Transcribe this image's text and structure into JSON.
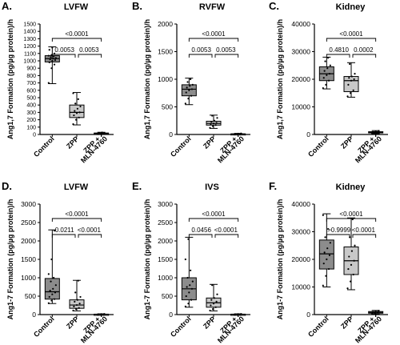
{
  "figure": {
    "ylabel_1_7": "Ang1,7 Formation (pg/µg protein)/h",
    "ylabel_1_7b": "Ang1-7 Formation (pg/µg protein)/h"
  },
  "chart_data": [
    {
      "type": "box",
      "panel_letter": "A.",
      "title": "LVFW",
      "ylabel": "Ang1,7 Formation (pg/µg protein)/h",
      "categories": [
        "Control",
        "ZPP",
        "ZPP +\nMLN-4760"
      ],
      "category_labels": [
        "Control",
        "ZPP",
        "ZPP +",
        "MLN-4760"
      ],
      "ylim": [
        0,
        1500
      ],
      "yticks": [
        "0",
        "100",
        "200",
        "300",
        "400",
        "500",
        "600",
        "700",
        "800",
        "900",
        "1000",
        "1100",
        "1200",
        "1300",
        "1400",
        "1500"
      ],
      "ytick_values": [
        0,
        100,
        200,
        300,
        400,
        500,
        600,
        700,
        800,
        900,
        1000,
        1100,
        1200,
        1300,
        1400,
        1500
      ],
      "boxes": [
        {
          "min": 690,
          "q1": 985,
          "median": 1030,
          "q3": 1070,
          "max": 1190,
          "fill": "#8c8c8c",
          "points": [
            700,
            900,
            950,
            980,
            1000,
            1010,
            1020,
            1030,
            1040,
            1050,
            1060,
            1070,
            1080,
            1100,
            1150,
            1180
          ]
        },
        {
          "min": 130,
          "q1": 230,
          "median": 300,
          "q3": 400,
          "max": 570,
          "fill": "#c8c8c8",
          "points": [
            140,
            200,
            230,
            260,
            290,
            300,
            320,
            350,
            380,
            420,
            480,
            560
          ]
        },
        {
          "min": 5,
          "q1": 10,
          "median": 14,
          "q3": 20,
          "max": 30,
          "fill": "#ffffff",
          "points": [
            5,
            8,
            10,
            12,
            15,
            18,
            22,
            28
          ]
        }
      ],
      "comparisons": [
        {
          "from": 0,
          "to": 2,
          "label": "<0.0001",
          "level": 2
        },
        {
          "from": 0,
          "to": 1,
          "label": "0.0053",
          "level": 1
        },
        {
          "from": 1,
          "to": 2,
          "label": "0.0053",
          "level": 1
        }
      ]
    },
    {
      "type": "box",
      "panel_letter": "B.",
      "title": "RVFW",
      "ylabel": "Ang1,7 Formation (pg/µg protein)/h",
      "categories": [
        "Control",
        "ZPP",
        "ZPP +\nMLN-4760"
      ],
      "category_labels": [
        "Control",
        "ZPP",
        "ZPP +",
        "MLN-4760"
      ],
      "ylim": [
        0,
        2000
      ],
      "yticks": [
        "0",
        "500",
        "1000",
        "1500",
        "2000"
      ],
      "ytick_values": [
        0,
        500,
        1000,
        1500,
        2000
      ],
      "boxes": [
        {
          "min": 540,
          "q1": 700,
          "median": 820,
          "q3": 900,
          "max": 1020,
          "fill": "#8c8c8c",
          "points": [
            560,
            650,
            700,
            760,
            800,
            820,
            850,
            880,
            900,
            950,
            1000
          ]
        },
        {
          "min": 110,
          "q1": 170,
          "median": 200,
          "q3": 240,
          "max": 350,
          "fill": "#c8c8c8",
          "points": [
            120,
            150,
            170,
            190,
            200,
            210,
            230,
            250,
            300,
            340
          ]
        },
        {
          "min": 2,
          "q1": 5,
          "median": 8,
          "q3": 12,
          "max": 20,
          "fill": "#ffffff",
          "points": [
            3,
            5,
            8,
            10,
            14,
            18
          ]
        }
      ],
      "comparisons": [
        {
          "from": 0,
          "to": 2,
          "label": "<0.0001",
          "level": 2
        },
        {
          "from": 0,
          "to": 1,
          "label": "0.0053",
          "level": 1
        },
        {
          "from": 1,
          "to": 2,
          "label": "0.0053",
          "level": 1
        }
      ]
    },
    {
      "type": "box",
      "panel_letter": "C.",
      "title": "Kidney",
      "ylabel": "Ang1,7 Formation (pg/µg protein)/h",
      "categories": [
        "Control",
        "ZPP",
        "ZPP +\nMLN-4760"
      ],
      "category_labels": [
        "Control",
        "ZPP",
        "ZPP +",
        "MLN-4760"
      ],
      "ylim": [
        0,
        40000
      ],
      "yticks": [
        "0",
        "10000",
        "20000",
        "30000",
        "40000"
      ],
      "ytick_values": [
        0,
        10000,
        20000,
        30000,
        40000
      ],
      "boxes": [
        {
          "min": 16500,
          "q1": 19500,
          "median": 22000,
          "q3": 24500,
          "max": 28000,
          "fill": "#8c8c8c",
          "points": [
            16800,
            18000,
            19500,
            20500,
            21500,
            22000,
            23000,
            24000,
            25000,
            26500,
            27800
          ]
        },
        {
          "min": 13500,
          "q1": 15500,
          "median": 19500,
          "q3": 21000,
          "max": 26000,
          "fill": "#c8c8c8",
          "points": [
            13800,
            15000,
            16000,
            18000,
            19500,
            20000,
            20500,
            21000,
            22000,
            25500
          ]
        },
        {
          "min": 300,
          "q1": 600,
          "median": 800,
          "q3": 1000,
          "max": 1400,
          "fill": "#ffffff",
          "points": [
            400,
            600,
            800,
            900,
            1100,
            1300
          ]
        }
      ],
      "comparisons": [
        {
          "from": 0,
          "to": 2,
          "label": "<0.0001",
          "level": 2
        },
        {
          "from": 0,
          "to": 1,
          "label": "0.4810",
          "level": 1
        },
        {
          "from": 1,
          "to": 2,
          "label": "0.0002",
          "level": 1
        }
      ]
    },
    {
      "type": "box",
      "panel_letter": "D.",
      "title": "LVFW",
      "ylabel": "Ang1-7 Formation (pg/µg protein)/h",
      "categories": [
        "Control",
        "ZPP",
        "ZPP +\nMLN-4760"
      ],
      "category_labels": [
        "Control",
        "ZPP",
        "ZPP +",
        "MLN-4760"
      ],
      "ylim": [
        0,
        3000
      ],
      "yticks": [
        "0",
        "500",
        "1000",
        "1500",
        "2000",
        "2500",
        "3000"
      ],
      "ytick_values": [
        0,
        500,
        1000,
        1500,
        2000,
        2500,
        3000
      ],
      "boxes": [
        {
          "min": 300,
          "q1": 420,
          "median": 620,
          "q3": 980,
          "max": 2300,
          "fill": "#8c8c8c",
          "points": [
            310,
            380,
            420,
            480,
            550,
            600,
            650,
            700,
            800,
            900,
            1000,
            1100,
            1500,
            2280
          ]
        },
        {
          "min": 100,
          "q1": 170,
          "median": 260,
          "q3": 400,
          "max": 930,
          "fill": "#c8c8c8",
          "points": [
            110,
            150,
            180,
            220,
            260,
            300,
            350,
            400,
            480,
            600,
            920
          ]
        },
        {
          "min": 2,
          "q1": 5,
          "median": 8,
          "q3": 12,
          "max": 20,
          "fill": "#ffffff",
          "points": [
            3,
            5,
            8,
            10,
            14,
            18
          ]
        }
      ],
      "comparisons": [
        {
          "from": 0,
          "to": 2,
          "label": "<0.0001",
          "level": 2
        },
        {
          "from": 0,
          "to": 1,
          "label": "0.0211",
          "level": 1
        },
        {
          "from": 1,
          "to": 2,
          "label": "<0.0001",
          "level": 1
        }
      ]
    },
    {
      "type": "box",
      "panel_letter": "E.",
      "title": "IVS",
      "ylabel": "Ang1-7 Formation (pg/µg protein)/h",
      "categories": [
        "Control",
        "ZPP",
        "ZPP +\nMLN-4760"
      ],
      "category_labels": [
        "Control",
        "ZPP",
        "ZPP +",
        "MLN-4760"
      ],
      "ylim": [
        0,
        3000
      ],
      "yticks": [
        "0",
        "500",
        "1000",
        "1500",
        "2000",
        "2500",
        "3000"
      ],
      "ytick_values": [
        0,
        500,
        1000,
        1500,
        2000,
        2500,
        3000
      ],
      "boxes": [
        {
          "min": 200,
          "q1": 400,
          "median": 700,
          "q3": 1000,
          "max": 2100,
          "fill": "#8c8c8c",
          "points": [
            220,
            300,
            400,
            500,
            600,
            700,
            750,
            800,
            900,
            1000,
            1200,
            1500,
            2050
          ]
        },
        {
          "min": 100,
          "q1": 200,
          "median": 320,
          "q3": 450,
          "max": 820,
          "fill": "#c8c8c8",
          "points": [
            110,
            150,
            200,
            250,
            300,
            350,
            400,
            450,
            550,
            800
          ]
        },
        {
          "min": 2,
          "q1": 5,
          "median": 8,
          "q3": 12,
          "max": 20,
          "fill": "#ffffff",
          "points": [
            3,
            5,
            8,
            10,
            14,
            18
          ]
        }
      ],
      "comparisons": [
        {
          "from": 0,
          "to": 2,
          "label": "<0.0001",
          "level": 2
        },
        {
          "from": 0,
          "to": 1,
          "label": "0.0456",
          "level": 1
        },
        {
          "from": 1,
          "to": 2,
          "label": "<0.0001",
          "level": 1
        }
      ]
    },
    {
      "type": "box",
      "panel_letter": "F.",
      "title": "Kidney",
      "ylabel": "Ang1-7 Formation (pg/µg protein)/h",
      "categories": [
        "Control",
        "ZPP",
        "ZPP +\nMLN-4760"
      ],
      "category_labels": [
        "Control",
        "ZPP",
        "ZPP +",
        "MLN-4760"
      ],
      "ylim": [
        0,
        40000
      ],
      "yticks": [
        "0",
        "10000",
        "20000",
        "30000",
        "40000"
      ],
      "ytick_values": [
        0,
        10000,
        20000,
        30000,
        40000
      ],
      "boxes": [
        {
          "min": 10000,
          "q1": 16500,
          "median": 22000,
          "q3": 27000,
          "max": 36500,
          "fill": "#8c8c8c",
          "points": [
            10500,
            14000,
            16500,
            18500,
            20000,
            21500,
            22500,
            24000,
            26000,
            28000,
            31000,
            36000
          ]
        },
        {
          "min": 9000,
          "q1": 14500,
          "median": 19500,
          "q3": 24500,
          "max": 35000,
          "fill": "#c8c8c8",
          "points": [
            9500,
            12000,
            14500,
            16500,
            18000,
            19500,
            21000,
            23000,
            25000,
            28000,
            34500
          ]
        },
        {
          "min": 200,
          "q1": 500,
          "median": 800,
          "q3": 1100,
          "max": 1500,
          "fill": "#ffffff",
          "points": [
            300,
            500,
            700,
            900,
            1100,
            1400
          ]
        }
      ],
      "comparisons": [
        {
          "from": 0,
          "to": 2,
          "label": "<0.0001",
          "level": 2
        },
        {
          "from": 0,
          "to": 1,
          "label": ">0.9999",
          "level": 1
        },
        {
          "from": 1,
          "to": 2,
          "label": "<0.0001",
          "level": 1
        }
      ]
    }
  ]
}
